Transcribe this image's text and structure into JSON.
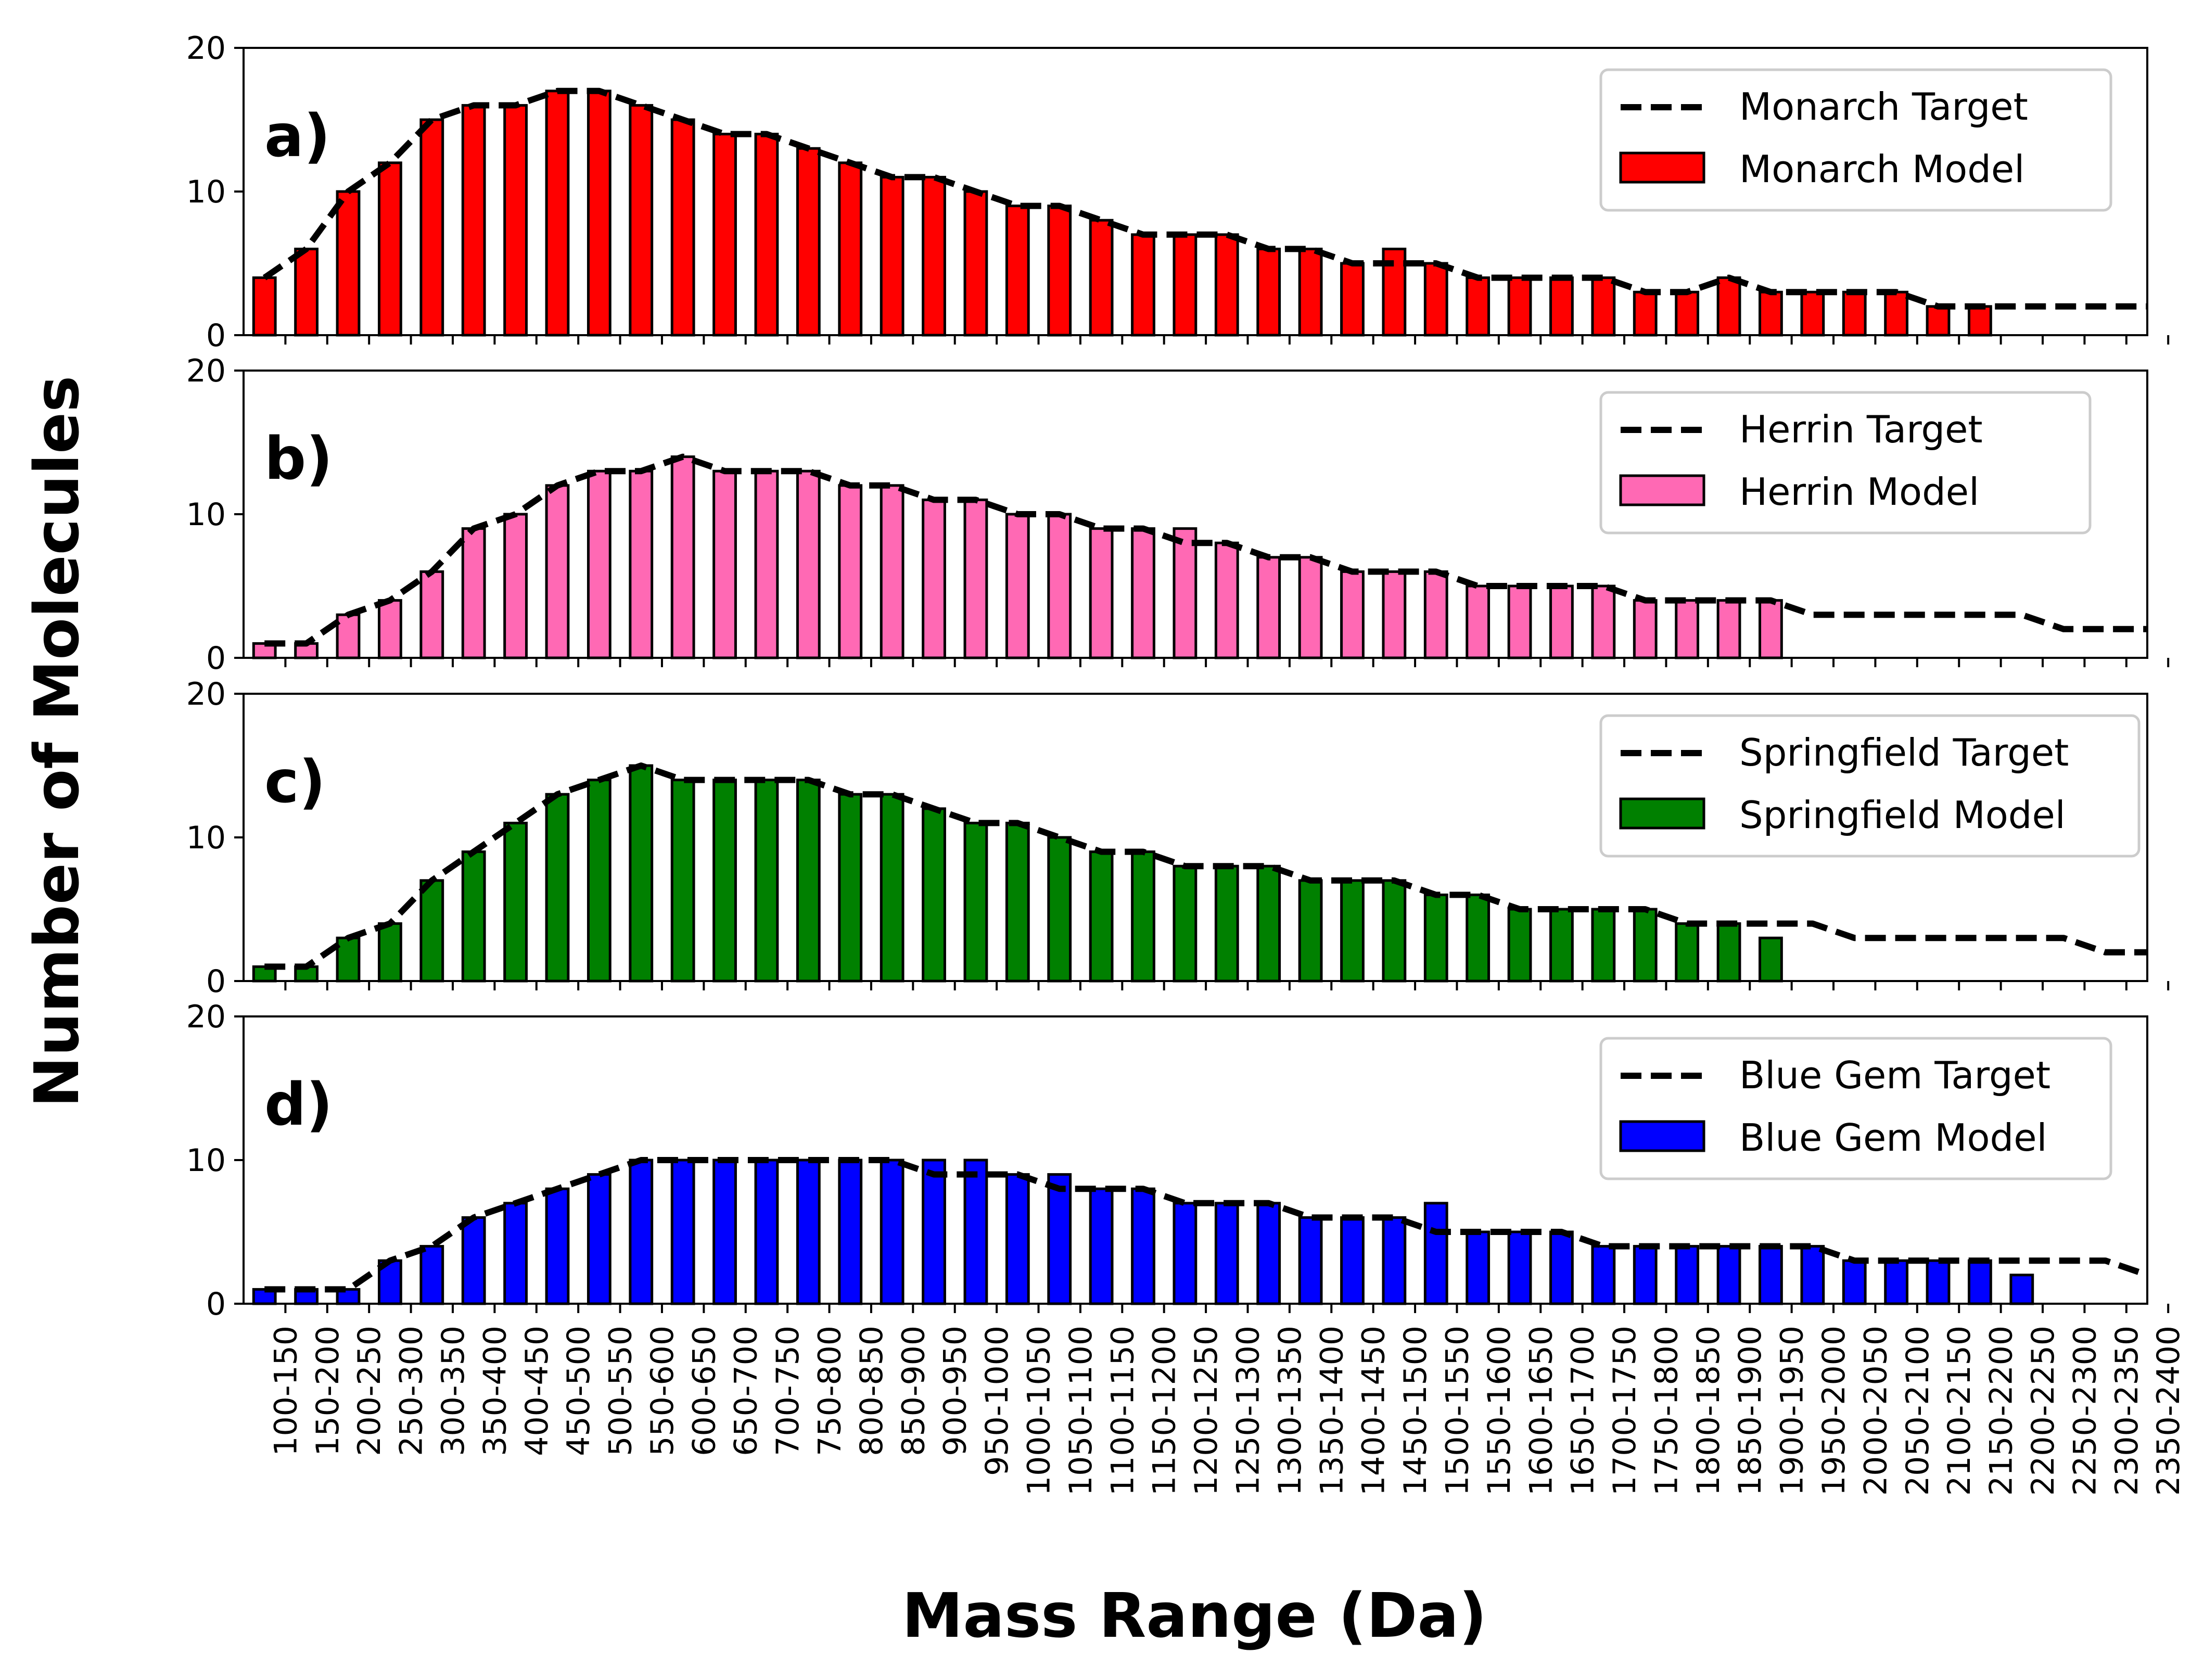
{
  "chart_data": {
    "type": "bar",
    "xlabel": "Mass Range (Da)",
    "ylabel": "Number of Molecules",
    "categories": [
      "100-150",
      "150-200",
      "200-250",
      "250-300",
      "300-350",
      "350-400",
      "400-450",
      "450-500",
      "500-550",
      "550-600",
      "600-650",
      "650-700",
      "700-750",
      "750-800",
      "800-850",
      "850-900",
      "900-950",
      "950-1000",
      "1000-1050",
      "1050-1100",
      "1100-1150",
      "1150-1200",
      "1200-1250",
      "1250-1300",
      "1300-1350",
      "1350-1400",
      "1400-1450",
      "1450-1500",
      "1500-1550",
      "1550-1600",
      "1600-1650",
      "1650-1700",
      "1700-1750",
      "1750-1800",
      "1800-1850",
      "1850-1900",
      "1900-1950",
      "1950-2000",
      "2000-2050",
      "2050-2100",
      "2100-2150",
      "2150-2200",
      "2200-2250",
      "2250-2300",
      "2300-2350",
      "2350-2400"
    ],
    "ylim": [
      0,
      20
    ],
    "yticks": [
      "0",
      "10",
      "20"
    ],
    "legend_position": "upper right",
    "panels": [
      {
        "letter": "a)",
        "color": "#ff0000",
        "target_name": "Monarch Target",
        "model_name": "Monarch Model",
        "target": [
          4,
          6,
          10,
          12,
          15,
          16,
          16,
          17,
          17,
          16,
          15,
          14,
          14,
          13,
          12,
          11,
          11,
          10,
          9,
          9,
          8,
          7,
          7,
          7,
          6,
          6,
          5,
          5,
          5,
          4,
          4,
          4,
          4,
          3,
          3,
          4,
          3,
          3,
          3,
          3,
          2,
          2,
          2,
          2,
          2,
          2
        ],
        "model": [
          4,
          6,
          10,
          12,
          15,
          16,
          16,
          17,
          17,
          16,
          15,
          14,
          14,
          13,
          12,
          11,
          11,
          10,
          9,
          9,
          8,
          7,
          7,
          7,
          6,
          6,
          5,
          6,
          5,
          4,
          4,
          4,
          4,
          3,
          3,
          4,
          3,
          3,
          3,
          3,
          2,
          2,
          0,
          0,
          0,
          0
        ]
      },
      {
        "letter": "b)",
        "color": "#ff69b4",
        "target_name": "Herrin Target",
        "model_name": "Herrin Model",
        "target": [
          1,
          1,
          3,
          4,
          6,
          9,
          10,
          12,
          13,
          13,
          14,
          13,
          13,
          13,
          12,
          12,
          11,
          11,
          10,
          10,
          9,
          9,
          8,
          8,
          7,
          7,
          6,
          6,
          6,
          5,
          5,
          5,
          5,
          4,
          4,
          4,
          4,
          3,
          3,
          3,
          3,
          3,
          3,
          2,
          2,
          2
        ],
        "model": [
          1,
          1,
          3,
          4,
          6,
          9,
          10,
          12,
          13,
          13,
          14,
          13,
          13,
          13,
          12,
          12,
          11,
          11,
          10,
          10,
          9,
          9,
          9,
          8,
          7,
          7,
          6,
          6,
          6,
          5,
          5,
          5,
          5,
          4,
          4,
          4,
          4,
          0,
          0,
          0,
          0,
          0,
          0,
          0,
          0,
          0
        ]
      },
      {
        "letter": "c)",
        "color": "#008000",
        "target_name": "Springfield Target",
        "model_name": "Springfield Model",
        "target": [
          1,
          1,
          3,
          4,
          7,
          9,
          11,
          13,
          14,
          15,
          14,
          14,
          14,
          14,
          13,
          13,
          12,
          11,
          11,
          10,
          9,
          9,
          8,
          8,
          8,
          7,
          7,
          7,
          6,
          6,
          5,
          5,
          5,
          5,
          4,
          4,
          4,
          4,
          3,
          3,
          3,
          3,
          3,
          3,
          2,
          2
        ],
        "model": [
          1,
          1,
          3,
          4,
          7,
          9,
          11,
          13,
          14,
          15,
          14,
          14,
          14,
          14,
          13,
          13,
          12,
          11,
          11,
          10,
          9,
          9,
          8,
          8,
          8,
          7,
          7,
          7,
          6,
          6,
          5,
          5,
          5,
          5,
          4,
          4,
          3,
          0,
          0,
          0,
          0,
          0,
          0,
          0,
          0,
          0
        ]
      },
      {
        "letter": "d)",
        "color": "#0000ff",
        "target_name": "Blue Gem Target",
        "model_name": "Blue Gem Model",
        "target": [
          1,
          1,
          1,
          3,
          4,
          6,
          7,
          8,
          9,
          10,
          10,
          10,
          10,
          10,
          10,
          10,
          9,
          9,
          9,
          8,
          8,
          8,
          7,
          7,
          7,
          6,
          6,
          6,
          5,
          5,
          5,
          5,
          4,
          4,
          4,
          4,
          4,
          4,
          3,
          3,
          3,
          3,
          3,
          3,
          3,
          2
        ],
        "model": [
          1,
          1,
          1,
          3,
          4,
          6,
          7,
          8,
          9,
          10,
          10,
          10,
          10,
          10,
          10,
          10,
          10,
          10,
          9,
          9,
          8,
          8,
          7,
          7,
          7,
          6,
          6,
          6,
          7,
          5,
          5,
          5,
          4,
          4,
          4,
          4,
          4,
          4,
          3,
          3,
          3,
          3,
          2,
          0,
          0,
          0
        ]
      }
    ]
  }
}
